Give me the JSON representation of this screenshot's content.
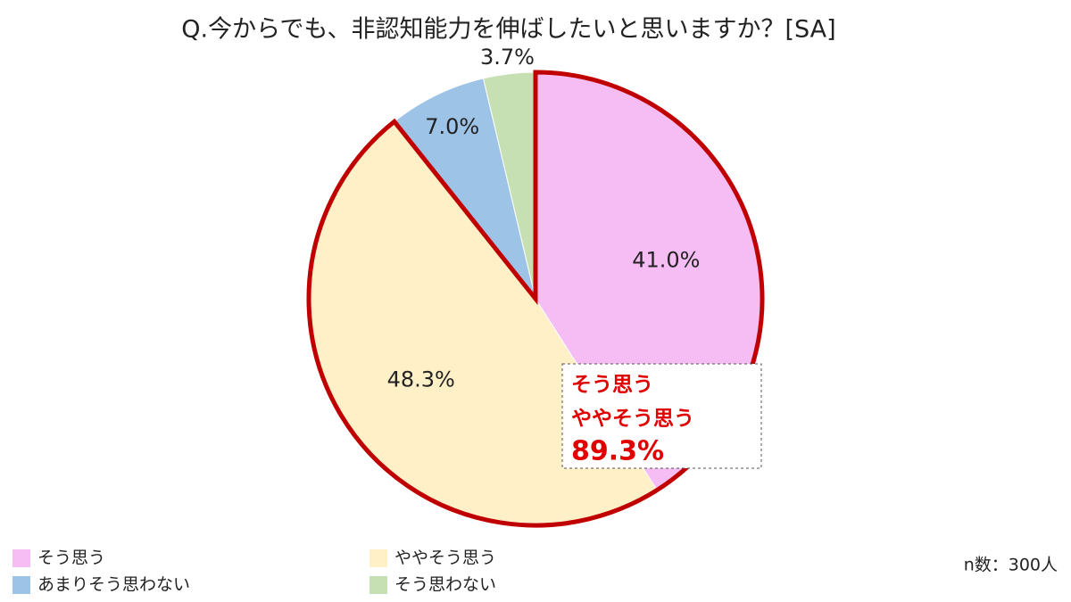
{
  "chart_data": {
    "type": "pie",
    "title": "Q.今からでも、非認知能力を伸ばしたいと思いますか？[SA]",
    "categories": [
      "そう思う",
      "ややそう思う",
      "あまりそう思わない",
      "そう思わない"
    ],
    "values": [
      41.0,
      48.3,
      7.0,
      3.7
    ],
    "value_labels": [
      "41.0%",
      "48.3%",
      "7.0%",
      "3.7%"
    ],
    "colors": [
      "#f5bdf3",
      "#fff0c8",
      "#9dc3e6",
      "#c6e0b4"
    ],
    "annotation": {
      "lines": [
        "そう思う",
        "ややそう思う"
      ],
      "total_label": "89.3%"
    },
    "note": "n数：300人"
  }
}
